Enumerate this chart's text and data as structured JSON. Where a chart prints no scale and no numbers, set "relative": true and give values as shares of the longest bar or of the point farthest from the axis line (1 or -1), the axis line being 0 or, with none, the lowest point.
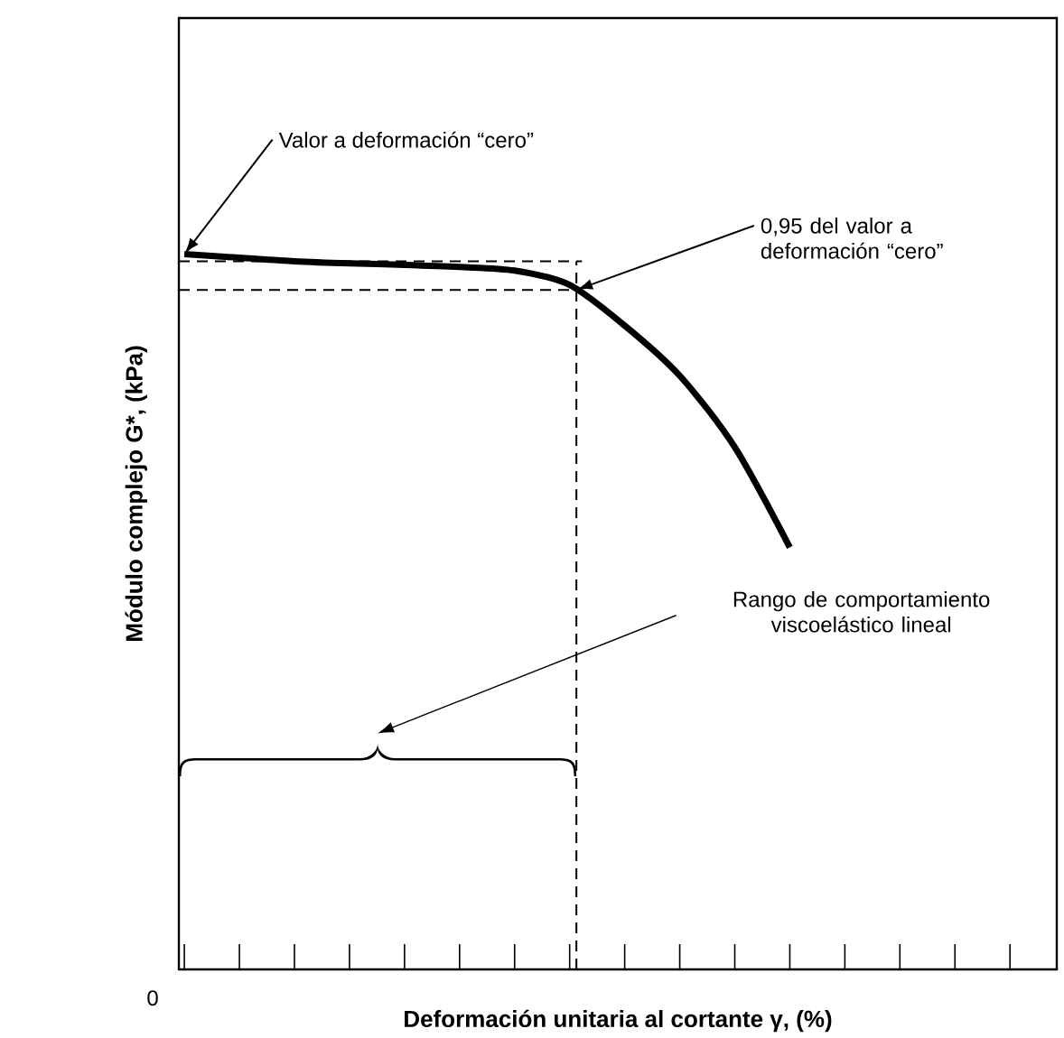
{
  "chart_data": {
    "type": "line",
    "relative": true,
    "xlabel": "Deformación unitaria al cortante γ, (%)",
    "ylabel": "Módulo complejo G*, (kPa)",
    "categories": [
      null,
      null,
      null,
      null,
      null,
      null,
      null,
      null,
      null,
      null,
      null,
      null,
      null,
      null,
      null,
      null
    ],
    "series": [
      {
        "color": "#000000",
        "values": [
          1.0,
          0.995,
          0.99,
          0.987,
          0.985,
          0.982,
          0.977,
          0.957,
          0.9,
          0.83,
          0.73,
          0.59,
          null,
          null,
          null,
          null
        ]
      }
    ],
    "ref_lines": [
      {
        "axis": "y",
        "value": 0.99,
        "color": "#000000",
        "line_style": "dashed"
      },
      {
        "axis": "y",
        "value": 0.95,
        "color": "#000000",
        "line_style": "dashed"
      }
    ],
    "annotations": [
      "Valor a deformación “cero”",
      "0,95 del valor a deformación “cero”",
      "Rango de comportamiento viscoelástico lineal",
      "0"
    ],
    "grid": false
  }
}
